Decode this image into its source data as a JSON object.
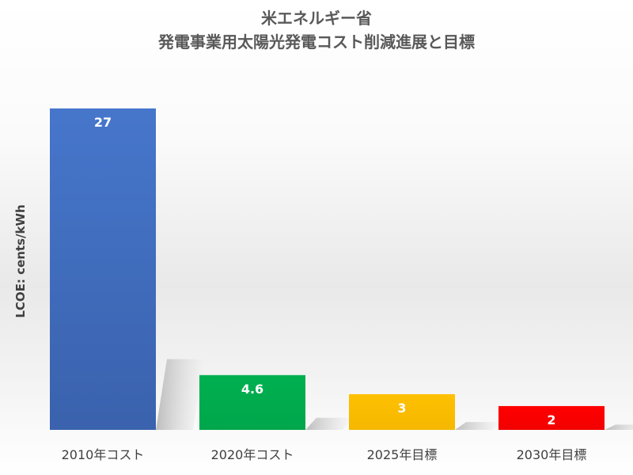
{
  "chart_data": {
    "type": "bar",
    "title_lines": [
      "米エネルギー省",
      "発電事業用太陽光発電コスト削減進展と目標"
    ],
    "ylabel": "LCOE: cents/kWh",
    "xlabel": "",
    "categories": [
      "2010年コスト",
      "2020年コスト",
      "2025年目標",
      "2030年目標"
    ],
    "values": [
      27,
      4.6,
      3,
      2
    ],
    "data_labels": [
      "27",
      "4.6",
      "3",
      "2"
    ],
    "colors": [
      "#4472C4",
      "#00B050",
      "#FFC000",
      "#FF0000"
    ],
    "ylim": [
      0,
      27
    ],
    "grid": false,
    "legend": "none"
  }
}
